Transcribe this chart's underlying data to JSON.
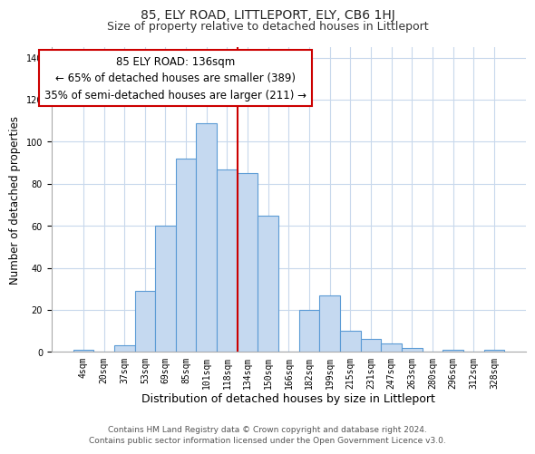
{
  "title": "85, ELY ROAD, LITTLEPORT, ELY, CB6 1HJ",
  "subtitle": "Size of property relative to detached houses in Littleport",
  "xlabel": "Distribution of detached houses by size in Littleport",
  "ylabel": "Number of detached properties",
  "bar_labels": [
    "4sqm",
    "20sqm",
    "37sqm",
    "53sqm",
    "69sqm",
    "85sqm",
    "101sqm",
    "118sqm",
    "134sqm",
    "150sqm",
    "166sqm",
    "182sqm",
    "199sqm",
    "215sqm",
    "231sqm",
    "247sqm",
    "263sqm",
    "280sqm",
    "296sqm",
    "312sqm",
    "328sqm"
  ],
  "bar_values": [
    1,
    0,
    3,
    29,
    60,
    92,
    109,
    87,
    85,
    65,
    0,
    20,
    27,
    10,
    6,
    4,
    2,
    0,
    1,
    0,
    1
  ],
  "bar_color": "#c5d9f0",
  "bar_edge_color": "#5b9bd5",
  "vline_color": "#cc0000",
  "annotation_title": "85 ELY ROAD: 136sqm",
  "annotation_line1": "← 65% of detached houses are smaller (389)",
  "annotation_line2": "35% of semi-detached houses are larger (211) →",
  "annotation_box_color": "#ffffff",
  "annotation_box_edge": "#cc0000",
  "ylim": [
    0,
    145
  ],
  "yticks": [
    0,
    20,
    40,
    60,
    80,
    100,
    120,
    140
  ],
  "footer1": "Contains HM Land Registry data © Crown copyright and database right 2024.",
  "footer2": "Contains public sector information licensed under the Open Government Licence v3.0.",
  "title_fontsize": 10,
  "subtitle_fontsize": 9,
  "xlabel_fontsize": 9,
  "ylabel_fontsize": 8.5,
  "tick_fontsize": 7,
  "footer_fontsize": 6.5,
  "annotation_title_fontsize": 8.5,
  "annotation_body_fontsize": 8.0,
  "grid_color": "#c8d8ec",
  "vline_index": 8
}
